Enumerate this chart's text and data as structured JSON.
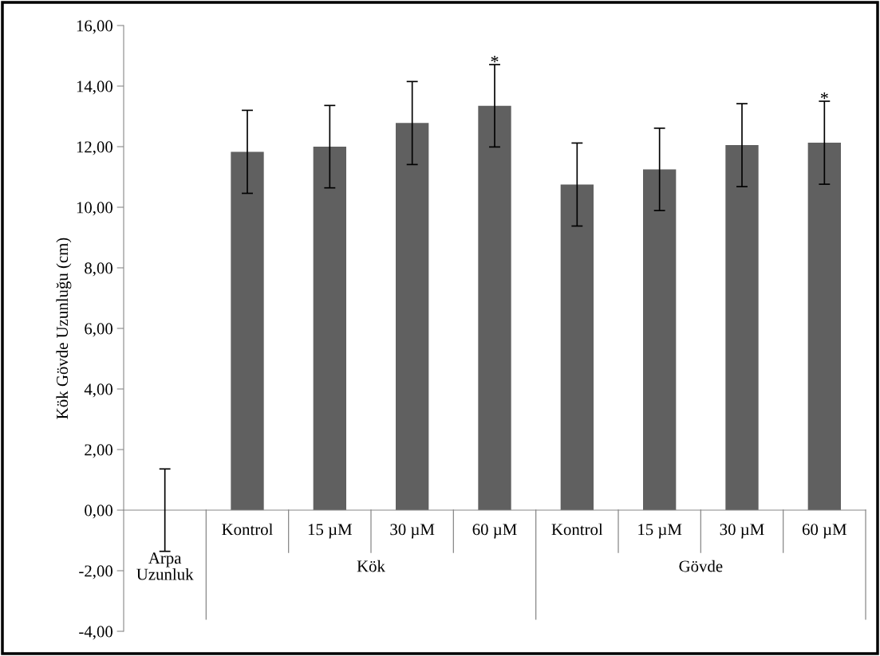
{
  "chart_data": {
    "type": "bar",
    "ylabel": "Kök Gövde Uzunluğu (cm)",
    "categories": [
      null,
      "Kontrol",
      "15 µM",
      "30 µM",
      "60 µM",
      "Kontrol",
      "15 µM",
      "30 µM",
      "60 µM"
    ],
    "values": [
      0,
      11.83,
      12.0,
      12.78,
      13.35,
      10.75,
      11.25,
      12.05,
      12.13
    ],
    "errors": [
      1.36,
      1.37,
      1.36,
      1.37,
      1.36,
      1.37,
      1.36,
      1.37,
      1.37
    ],
    "value_labels": [
      null,
      null,
      null,
      null,
      "*",
      null,
      null,
      null,
      "*"
    ],
    "color": "#606060",
    "ylim": [
      -4,
      16
    ],
    "yticks": [
      {
        "value": -4,
        "label": "-4,00"
      },
      {
        "value": -2,
        "label": "-2,00"
      },
      {
        "value": 0,
        "label": "0,00"
      },
      {
        "value": 2,
        "label": "2,00"
      },
      {
        "value": 4,
        "label": "4,00"
      },
      {
        "value": 6,
        "label": "6,00"
      },
      {
        "value": 8,
        "label": "8,00"
      },
      {
        "value": 10,
        "label": "10,00"
      },
      {
        "value": 12,
        "label": "12,00"
      },
      {
        "value": 14,
        "label": "14,00"
      },
      {
        "value": 16,
        "label": "16,00"
      }
    ],
    "annotations": [
      "Arpa\nUzunluk",
      "Kök",
      "Gövde"
    ],
    "grid": false
  }
}
